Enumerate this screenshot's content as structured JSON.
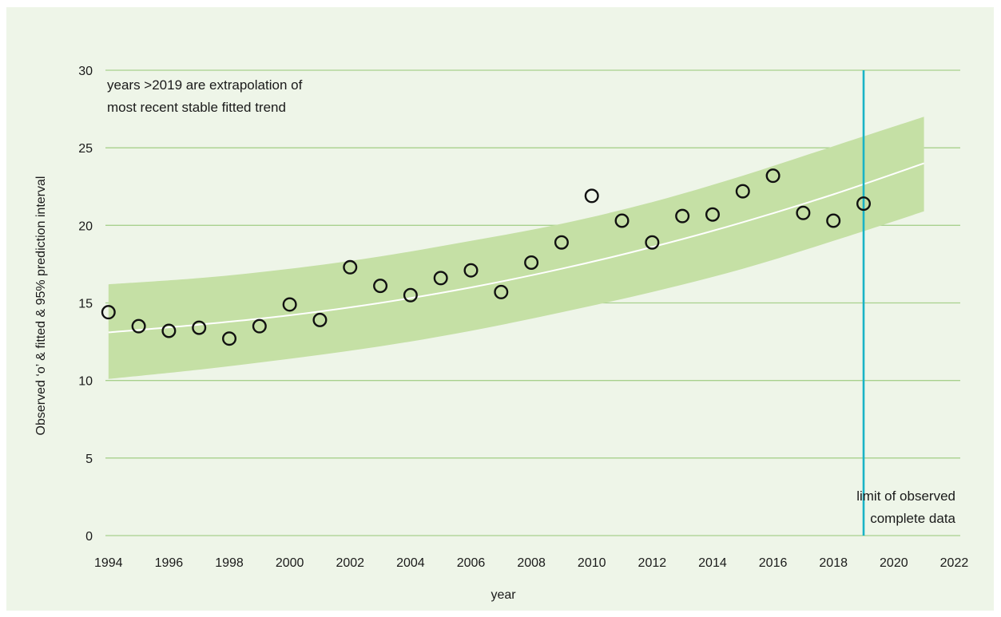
{
  "chart_data": {
    "type": "scatter",
    "title": "",
    "xlabel": "year",
    "ylabel": "Observed ‘o’ & fitted & 95% prediction interval",
    "xlim": [
      1993.9,
      2022.2
    ],
    "ylim": [
      0,
      30
    ],
    "x_ticks": [
      1994,
      1996,
      1998,
      2000,
      2002,
      2004,
      2006,
      2008,
      2010,
      2012,
      2014,
      2016,
      2018,
      2020,
      2022
    ],
    "y_ticks": [
      0,
      5,
      10,
      15,
      20,
      25,
      30
    ],
    "grid": "horizontal",
    "observed": {
      "marker": "o",
      "x": [
        1994,
        1995,
        1996,
        1997,
        1998,
        1999,
        2000,
        2001,
        2002,
        2003,
        2004,
        2005,
        2006,
        2007,
        2008,
        2009,
        2010,
        2011,
        2012,
        2013,
        2014,
        2015,
        2016,
        2017,
        2018,
        2019
      ],
      "y": [
        14.4,
        13.5,
        13.2,
        13.4,
        12.7,
        13.5,
        14.9,
        13.9,
        17.3,
        16.1,
        15.5,
        16.6,
        17.1,
        15.7,
        17.6,
        18.9,
        21.9,
        20.3,
        18.9,
        20.6,
        20.7,
        22.2,
        23.2,
        20.8,
        20.3,
        21.4
      ]
    },
    "fitted": {
      "x": [
        1994,
        1997,
        2000,
        2003,
        2006,
        2009,
        2012,
        2015,
        2018,
        2021
      ],
      "y": [
        13.1,
        13.6,
        14.2,
        15.0,
        16.0,
        17.2,
        18.6,
        20.2,
        22.0,
        24.0
      ]
    },
    "prediction_interval": {
      "x": [
        1994,
        1997,
        2000,
        2003,
        2006,
        2009,
        2012,
        2015,
        2018,
        2021
      ],
      "lower": [
        10.1,
        10.7,
        11.4,
        12.2,
        13.2,
        14.4,
        15.7,
        17.2,
        19.0,
        20.9
      ],
      "upper": [
        16.2,
        16.6,
        17.2,
        18.0,
        19.0,
        20.1,
        21.5,
        23.2,
        25.1,
        27.0
      ]
    },
    "reference_line": {
      "x": 2019
    },
    "annotations": [
      {
        "lines": [
          "years >2019 are extrapolation of",
          "most recent stable fitted trend"
        ]
      },
      {
        "lines": [
          "limit of observed",
          "complete data"
        ]
      }
    ],
    "colors": {
      "background": "#eef5e8",
      "grid": "#a8d08d",
      "band": "#c5e0a5",
      "fitted_line": "#ffffff",
      "marker": "#111111",
      "reference_line": "#19b3c6"
    }
  }
}
